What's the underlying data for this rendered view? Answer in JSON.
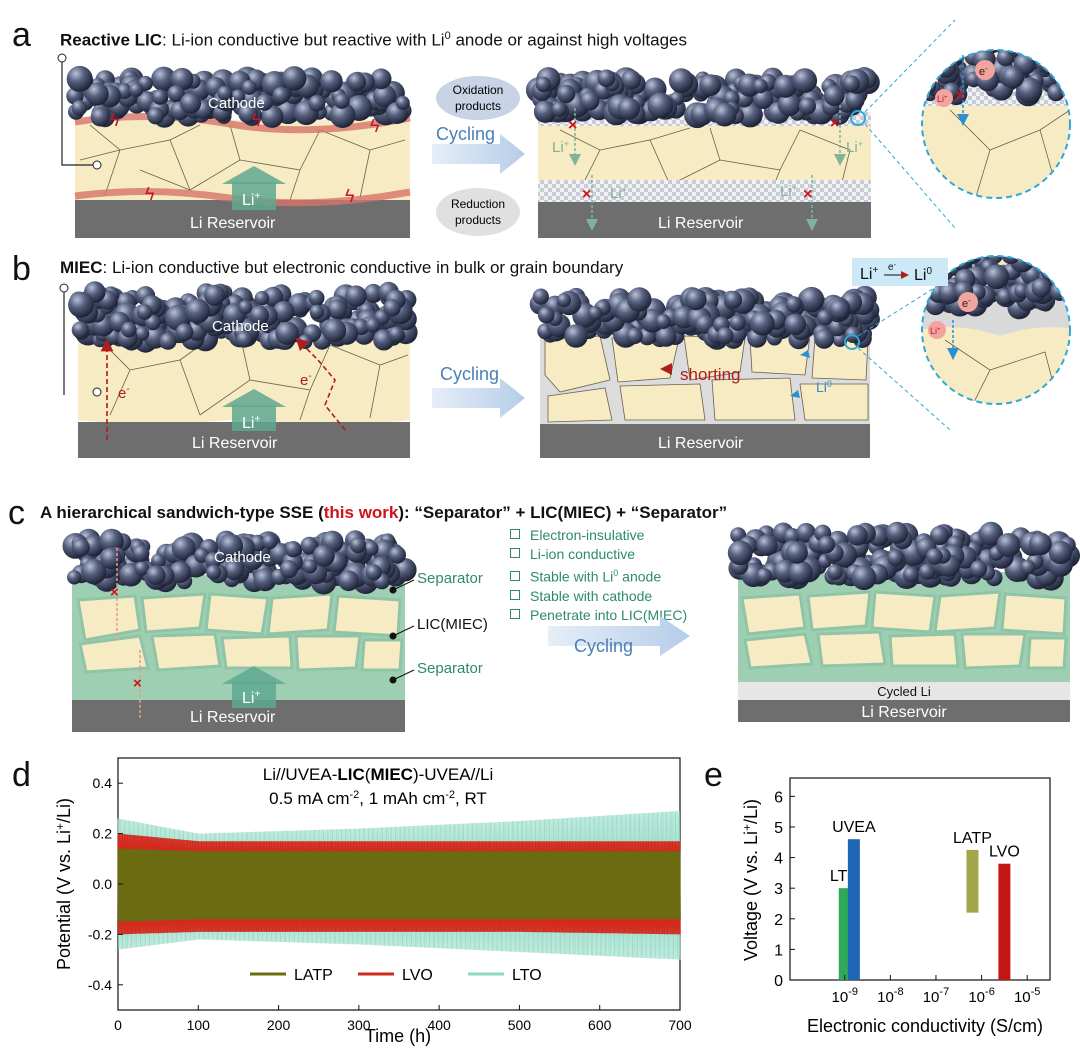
{
  "panels": {
    "a": {
      "letter": "a",
      "title_bold": "Reactive LIC",
      "title_rest": ": Li-ion conductive but reactive with Li",
      "title_sup": "0",
      "title_tail": " anode or against high voltages",
      "cathode": "Cathode",
      "reservoir": "Li Reservoir",
      "liplus": "Li",
      "oxidation": [
        "Oxidation",
        "products"
      ],
      "reduction": [
        "Reduction",
        "products"
      ],
      "cycling": "Cycling",
      "electron": "e",
      "xmark": "×"
    },
    "b": {
      "letter": "b",
      "title_bold": "MIEC",
      "title_rest": ": Li-ion conductive but electronic conductive in bulk or grain boundary",
      "cathode": "Cathode",
      "reservoir": "Li Reservoir",
      "cycling": "Cycling",
      "shorting": "shorting",
      "li0": "Li",
      "eq_left": "Li",
      "eq_arrow_e": "e",
      "eq_right": "Li"
    },
    "c": {
      "letter": "c",
      "title_a": "A hierarchical sandwich-type SSE (",
      "title_red": "this work",
      "title_b": "): “Separator” + LIC(MIEC) + “Separator”",
      "bullets": [
        "Electron-insulative",
        "Li-ion conductive",
        "Stable with Li",
        "Stable with cathode",
        "Penetrate into LIC(MIEC)"
      ],
      "bullet3_sup": "0",
      "bullet3_tail": " anode",
      "separator": "Separator",
      "lic": "LIC(MIEC)",
      "cathode": "Cathode",
      "reservoir": "Li Reservoir",
      "cycling": "Cycling",
      "cycled_li": "Cycled Li"
    },
    "d": {
      "letter": "d"
    },
    "e": {
      "letter": "e"
    }
  },
  "colors": {
    "electrolyte": "#f7ebc4",
    "grain_line": "#5a5040",
    "reservoir": "#6e6e6e",
    "separator": "#9fcfb3",
    "cathode_particle": "#3c4560",
    "latp": "#6b6b12",
    "lvo": "#d42a1e",
    "lto": "#8fd8c3",
    "uvea_bar": "#1f65b5",
    "lto_bar": "#2fa85a",
    "latp_bar": "#a3a64a",
    "lvo_bar": "#c41515",
    "cycling_arrow": "#c9dbee",
    "dashed_circle": "#2fa8d8"
  },
  "chart_data": [
    {
      "type": "line",
      "title_lines": [
        "Li//UVEA-LIC(MIEC)-UVEA//Li",
        "0.5 mA cm-2, 1 mAh cm-2, RT"
      ],
      "xlabel": "Time (h)",
      "ylabel": "Potential (V vs. Li+/Li)",
      "xlim": [
        0,
        700
      ],
      "ylim": [
        -0.5,
        0.5
      ],
      "xticks": [
        0,
        100,
        200,
        300,
        400,
        500,
        600,
        700
      ],
      "yticks": [
        -0.4,
        -0.2,
        0.0,
        0.2,
        0.4
      ],
      "series": [
        {
          "name": "LATP",
          "envelope_t": [
            0,
            100,
            300,
            500,
            700
          ],
          "upper": [
            0.14,
            0.13,
            0.13,
            0.13,
            0.13
          ],
          "lower": [
            -0.15,
            -0.14,
            -0.14,
            -0.14,
            -0.14
          ]
        },
        {
          "name": "LVO",
          "envelope_t": [
            0,
            100,
            300,
            500,
            700
          ],
          "upper": [
            0.2,
            0.17,
            0.17,
            0.17,
            0.17
          ],
          "lower": [
            -0.2,
            -0.19,
            -0.19,
            -0.19,
            -0.2
          ]
        },
        {
          "name": "LTO",
          "envelope_t": [
            0,
            100,
            300,
            500,
            700
          ],
          "upper": [
            0.26,
            0.2,
            0.22,
            0.25,
            0.29
          ],
          "lower": [
            -0.26,
            -0.22,
            -0.24,
            -0.27,
            -0.3
          ]
        }
      ],
      "legend": "bottom-center"
    },
    {
      "type": "bar",
      "xlabel": "Electronic conductivity (S/cm)",
      "ylabel": "Voltage (V vs. Li+/Li)",
      "ylim": [
        0,
        6.6
      ],
      "yticks": [
        0,
        1,
        2,
        3,
        4,
        5,
        6
      ],
      "xscale": "log",
      "xtick_exponents": [
        "-9",
        "-8",
        "-7",
        "-6",
        "-5"
      ],
      "xtick_base": "10",
      "bars": [
        {
          "label": "LTO",
          "log_x": -9.0,
          "bottom": 0,
          "top": 3.0
        },
        {
          "label": "UVEA",
          "log_x": -8.8,
          "bottom": 0,
          "top": 4.6
        },
        {
          "label": "LATP",
          "log_x": -6.2,
          "bottom": 2.2,
          "top": 4.25
        },
        {
          "label": "LVO",
          "log_x": -5.5,
          "bottom": 0,
          "top": 3.8
        }
      ]
    }
  ]
}
